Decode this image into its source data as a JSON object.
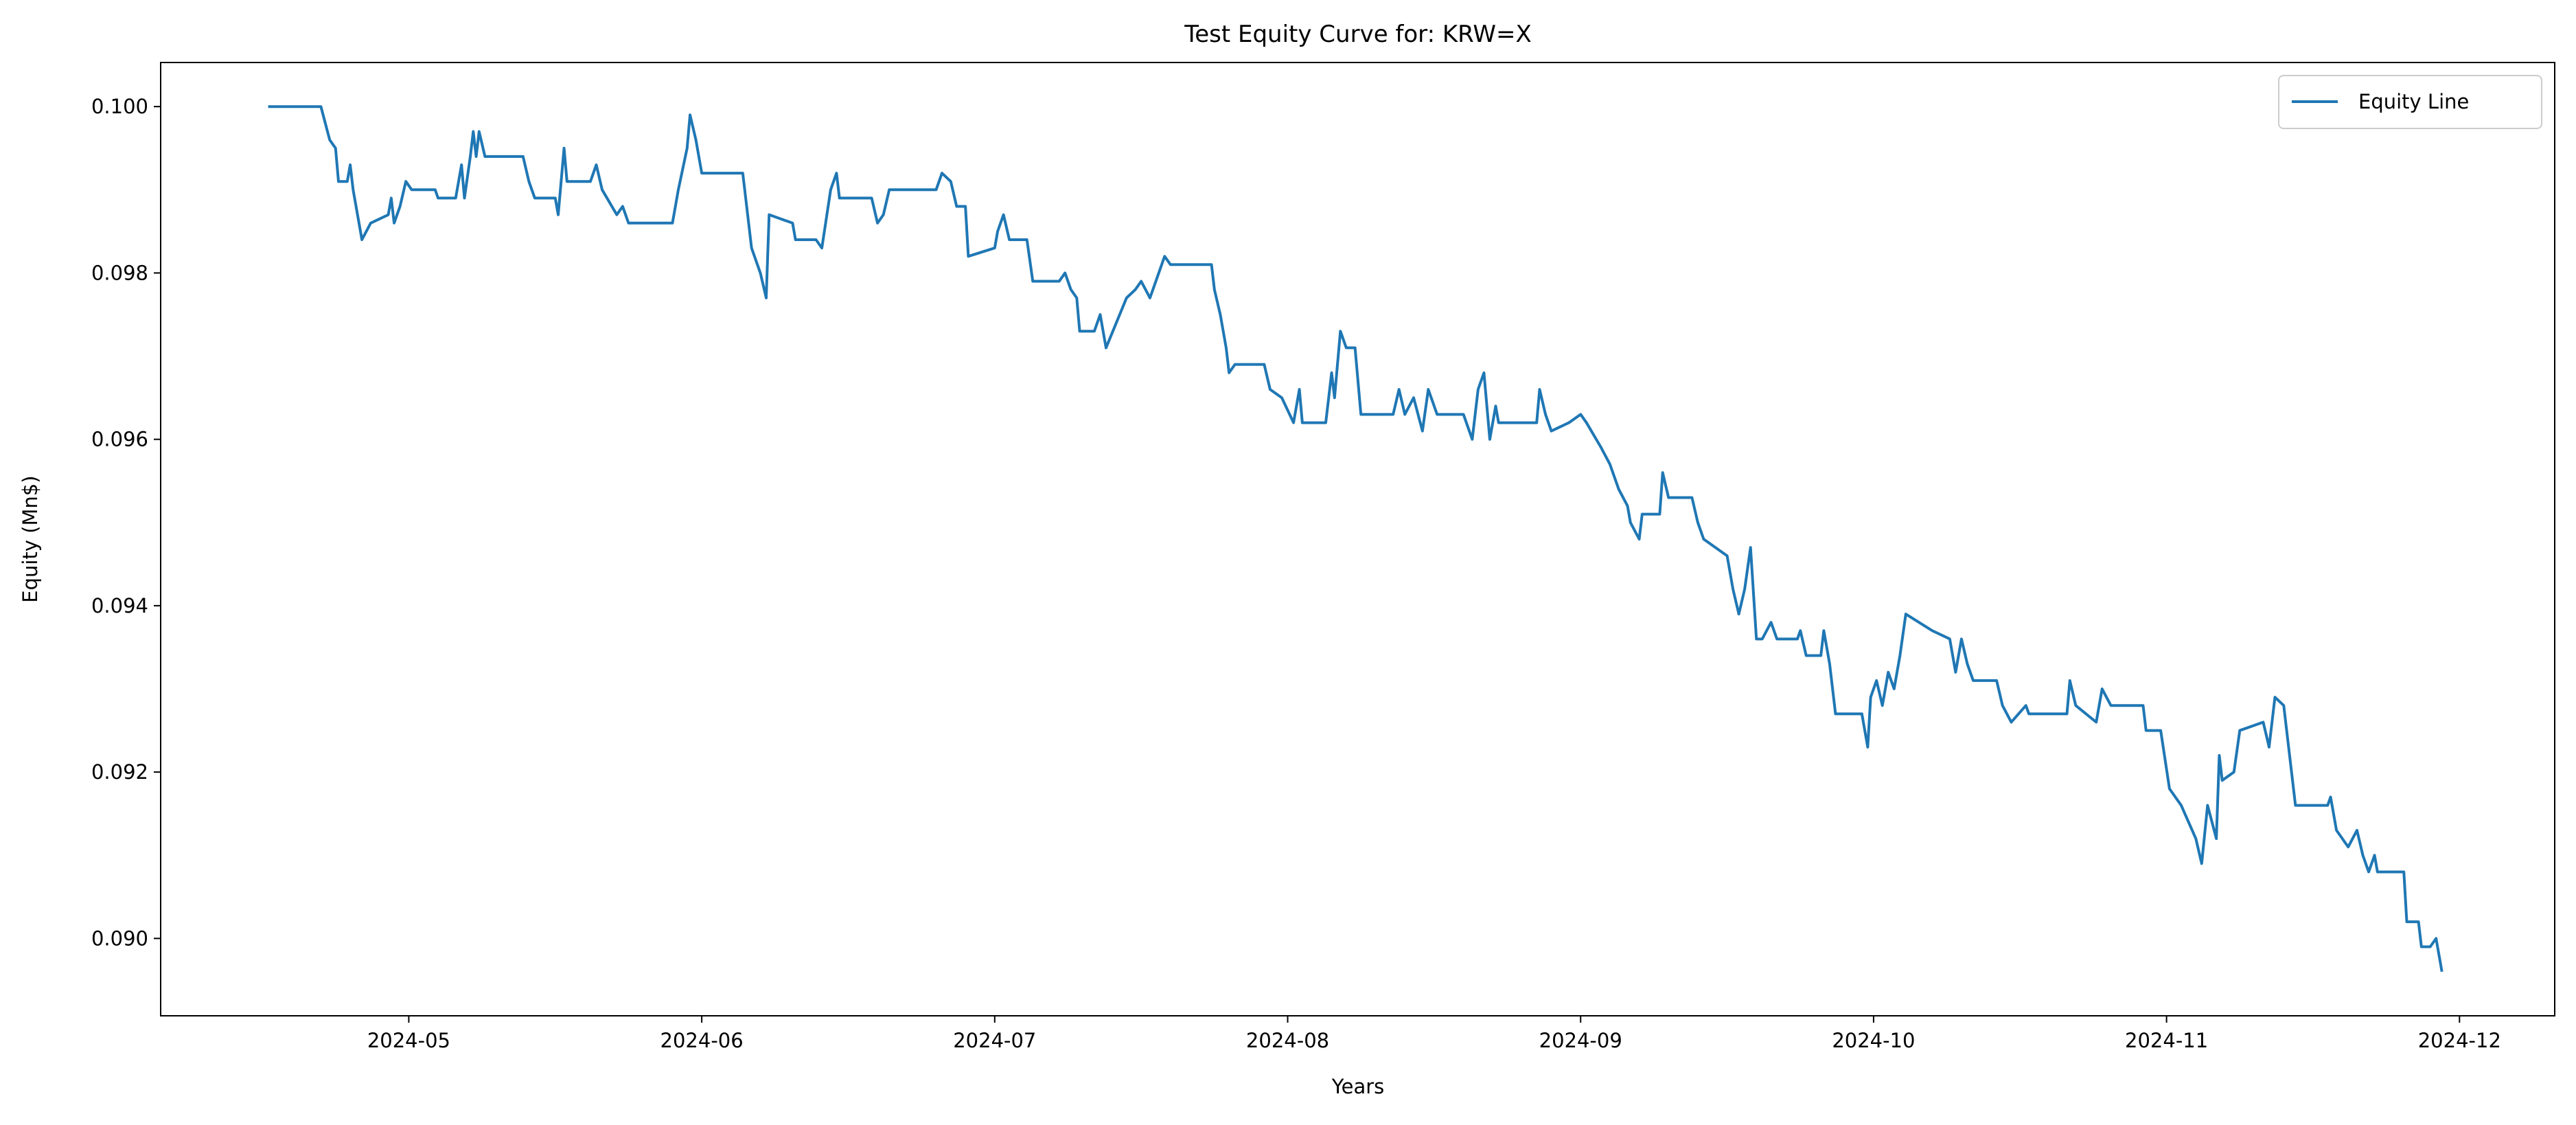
{
  "chart_data": {
    "type": "line",
    "title": "Test Equity Curve for: KRW=X",
    "xlabel": "Years",
    "ylabel": "Equity (Mn$)",
    "legend": "upper right",
    "grid": false,
    "xlim": [
      4.153,
      12.325
    ],
    "xticks": [
      {
        "value": 5,
        "label": "2024-05"
      },
      {
        "value": 6,
        "label": "2024-06"
      },
      {
        "value": 7,
        "label": "2024-07"
      },
      {
        "value": 8,
        "label": "2024-08"
      },
      {
        "value": 9,
        "label": "2024-09"
      },
      {
        "value": 10,
        "label": "2024-10"
      },
      {
        "value": 11,
        "label": "2024-11"
      },
      {
        "value": 12,
        "label": "2024-12"
      }
    ],
    "ylim": [
      0.08907,
      0.10053
    ],
    "yticks": [
      {
        "value": 0.09,
        "label": "0.090"
      },
      0.092,
      0.094,
      0.096,
      0.098,
      {
        "value": 0.1,
        "label": "0.100"
      }
    ],
    "x": [
      4.52,
      4.7,
      4.73,
      4.75,
      4.76,
      4.79,
      4.8,
      4.81,
      4.83,
      4.84,
      4.87,
      4.93,
      4.94,
      4.95,
      4.97,
      4.99,
      5.01,
      5.09,
      5.1,
      5.16,
      5.18,
      5.19,
      5.21,
      5.22,
      5.23,
      5.24,
      5.26,
      5.31,
      5.39,
      5.41,
      5.43,
      5.5,
      5.51,
      5.53,
      5.54,
      5.62,
      5.64,
      5.66,
      5.71,
      5.73,
      5.75,
      5.9,
      5.92,
      5.95,
      5.96,
      5.98,
      6.0,
      6.14,
      6.15,
      6.17,
      6.2,
      6.22,
      6.23,
      6.31,
      6.32,
      6.39,
      6.41,
      6.44,
      6.46,
      6.47,
      6.58,
      6.6,
      6.62,
      6.64,
      6.66,
      6.8,
      6.82,
      6.85,
      6.87,
      6.9,
      6.91,
      7.0,
      7.01,
      7.03,
      7.05,
      7.11,
      7.13,
      7.22,
      7.24,
      7.26,
      7.28,
      7.29,
      7.34,
      7.36,
      7.38,
      7.45,
      7.48,
      7.5,
      7.53,
      7.56,
      7.58,
      7.6,
      7.74,
      7.75,
      7.77,
      7.79,
      7.8,
      7.82,
      7.92,
      7.94,
      7.98,
      8.02,
      8.04,
      8.05,
      8.13,
      8.15,
      8.16,
      8.18,
      8.2,
      8.23,
      8.25,
      8.36,
      8.38,
      8.4,
      8.43,
      8.46,
      8.48,
      8.51,
      8.6,
      8.63,
      8.65,
      8.67,
      8.69,
      8.71,
      8.72,
      8.85,
      8.86,
      8.88,
      8.9,
      8.96,
      9.0,
      9.02,
      9.07,
      9.1,
      9.13,
      9.16,
      9.17,
      9.2,
      9.21,
      9.27,
      9.28,
      9.3,
      9.38,
      9.4,
      9.42,
      9.5,
      9.52,
      9.54,
      9.56,
      9.58,
      9.6,
      9.62,
      9.65,
      9.67,
      9.74,
      9.75,
      9.77,
      9.82,
      9.83,
      9.85,
      9.87,
      9.96,
      9.98,
      9.99,
      10.01,
      10.03,
      10.05,
      10.07,
      10.09,
      10.11,
      10.2,
      10.26,
      10.28,
      10.3,
      10.32,
      10.34,
      10.42,
      10.44,
      10.47,
      10.52,
      10.53,
      10.66,
      10.67,
      10.69,
      10.76,
      10.78,
      10.81,
      10.92,
      10.93,
      10.98,
      11.01,
      11.05,
      11.1,
      11.12,
      11.14,
      11.17,
      11.18,
      11.19,
      11.23,
      11.25,
      11.33,
      11.35,
      11.37,
      11.4,
      11.42,
      11.44,
      11.55,
      11.56,
      11.58,
      11.62,
      11.65,
      11.67,
      11.69,
      11.71,
      11.72,
      11.81,
      11.82,
      11.86,
      11.87,
      11.9,
      11.92,
      11.94
    ],
    "series": [
      {
        "name": "Equity Line",
        "color": "#1f77b4",
        "values": [
          0.1,
          0.1,
          0.0996,
          0.0995,
          0.0991,
          0.0991,
          0.0993,
          0.099,
          0.0986,
          0.0984,
          0.0986,
          0.0987,
          0.0989,
          0.0986,
          0.0988,
          0.0991,
          0.099,
          0.099,
          0.0989,
          0.0989,
          0.0993,
          0.0989,
          0.0994,
          0.0997,
          0.0994,
          0.0997,
          0.0994,
          0.0994,
          0.0994,
          0.0991,
          0.0989,
          0.0989,
          0.0987,
          0.0995,
          0.0991,
          0.0991,
          0.0993,
          0.099,
          0.0987,
          0.0988,
          0.0986,
          0.0986,
          0.099,
          0.0995,
          0.0999,
          0.0996,
          0.0992,
          0.0992,
          0.0989,
          0.0983,
          0.098,
          0.0977,
          0.0987,
          0.0986,
          0.0984,
          0.0984,
          0.0983,
          0.099,
          0.0992,
          0.0989,
          0.0989,
          0.0986,
          0.0987,
          0.099,
          0.099,
          0.099,
          0.0992,
          0.0991,
          0.0988,
          0.0988,
          0.0982,
          0.0983,
          0.0985,
          0.0987,
          0.0984,
          0.0984,
          0.0979,
          0.0979,
          0.098,
          0.0978,
          0.0977,
          0.0973,
          0.0973,
          0.0975,
          0.0971,
          0.0977,
          0.0978,
          0.0979,
          0.0977,
          0.098,
          0.0982,
          0.0981,
          0.0981,
          0.0978,
          0.0975,
          0.0971,
          0.0968,
          0.0969,
          0.0969,
          0.0966,
          0.0965,
          0.0962,
          0.0966,
          0.0962,
          0.0962,
          0.0968,
          0.0965,
          0.0973,
          0.0971,
          0.0971,
          0.0963,
          0.0963,
          0.0966,
          0.0963,
          0.0965,
          0.0961,
          0.0966,
          0.0963,
          0.0963,
          0.096,
          0.0966,
          0.0968,
          0.096,
          0.0964,
          0.0962,
          0.0962,
          0.0966,
          0.0963,
          0.0961,
          0.0962,
          0.0963,
          0.0962,
          0.0959,
          0.0957,
          0.0954,
          0.0952,
          0.095,
          0.0948,
          0.0951,
          0.0951,
          0.0956,
          0.0953,
          0.0953,
          0.095,
          0.0948,
          0.0946,
          0.0942,
          0.0939,
          0.0942,
          0.0947,
          0.0936,
          0.0936,
          0.0938,
          0.0936,
          0.0936,
          0.0937,
          0.0934,
          0.0934,
          0.0937,
          0.0933,
          0.0927,
          0.0927,
          0.0923,
          0.0929,
          0.0931,
          0.0928,
          0.0932,
          0.093,
          0.0934,
          0.0939,
          0.0937,
          0.0936,
          0.0932,
          0.0936,
          0.0933,
          0.0931,
          0.0931,
          0.0928,
          0.0926,
          0.0928,
          0.0927,
          0.0927,
          0.0931,
          0.0928,
          0.0926,
          0.093,
          0.0928,
          0.0928,
          0.0925,
          0.0925,
          0.0918,
          0.0916,
          0.0912,
          0.0909,
          0.0916,
          0.0912,
          0.0922,
          0.0919,
          0.092,
          0.0925,
          0.0926,
          0.0923,
          0.0929,
          0.0928,
          0.0922,
          0.0916,
          0.0916,
          0.0917,
          0.0913,
          0.0911,
          0.0913,
          0.091,
          0.0908,
          0.091,
          0.0908,
          0.0908,
          0.0902,
          0.0902,
          0.0899,
          0.0899,
          0.09,
          0.0896
        ]
      }
    ]
  }
}
